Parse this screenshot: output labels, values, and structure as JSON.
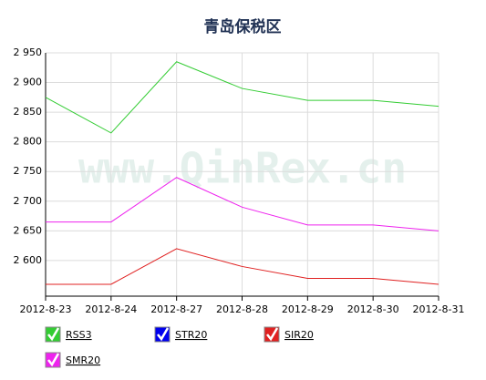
{
  "chart_data": {
    "type": "line",
    "title": "青岛保税区",
    "watermark": "www.QinRex.cn",
    "categories": [
      "2012-8-23",
      "2012-8-24",
      "2012-8-27",
      "2012-8-28",
      "2012-8-29",
      "2012-8-30",
      "2012-8-31"
    ],
    "series": [
      {
        "name": "RSS3",
        "color": "#33cc33",
        "values": [
          2875,
          2815,
          2935,
          2890,
          2870,
          2870,
          2860
        ]
      },
      {
        "name": "STR20",
        "color": "#0000ee",
        "values": [
          null,
          null,
          null,
          null,
          null,
          null,
          null
        ]
      },
      {
        "name": "SIR20",
        "color": "#e02020",
        "values": [
          2560,
          2560,
          2620,
          2590,
          2570,
          2570,
          2560
        ]
      },
      {
        "name": "SMR20",
        "color": "#ee22ee",
        "values": [
          2665,
          2665,
          2740,
          2690,
          2660,
          2660,
          2650
        ]
      }
    ],
    "ylim": [
      2540,
      2950
    ],
    "yticks": [
      {
        "value": 2600,
        "label": "2 600"
      },
      {
        "value": 2650,
        "label": "2 650"
      },
      {
        "value": 2700,
        "label": "2 700"
      },
      {
        "value": 2750,
        "label": "2 750"
      },
      {
        "value": 2800,
        "label": "2 800"
      },
      {
        "value": 2850,
        "label": "2 850"
      },
      {
        "value": 2900,
        "label": "2 900"
      },
      {
        "value": 2950,
        "label": "2 950"
      }
    ],
    "grid": true
  }
}
